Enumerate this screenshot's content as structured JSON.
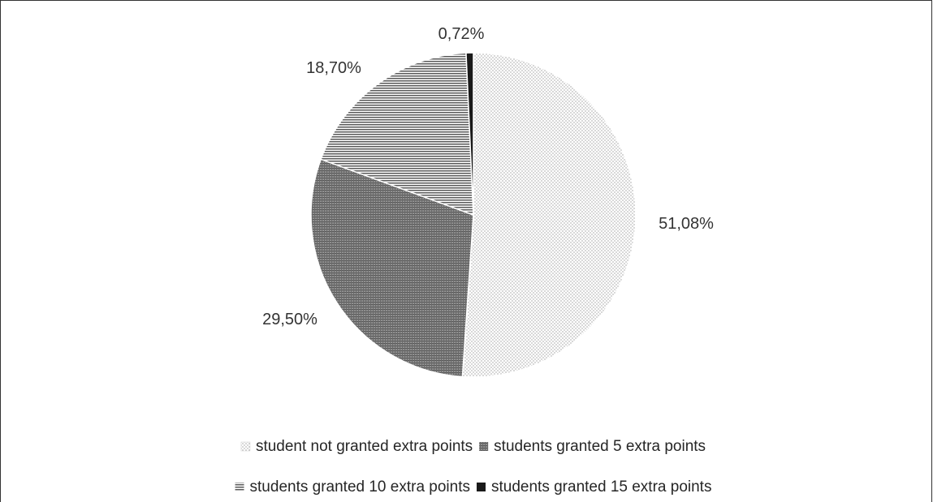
{
  "chart_data": {
    "type": "pie",
    "title": "",
    "slices": [
      {
        "label": "student not granted extra points",
        "value": 51.08,
        "display": "51,08%",
        "pattern": "dots"
      },
      {
        "label": "students granted 5 extra points",
        "value": 29.5,
        "display": "29,50%",
        "pattern": "dense-lines"
      },
      {
        "label": "students granted 10 extra points",
        "value": 18.7,
        "display": "18,70%",
        "pattern": "horizontal-lines"
      },
      {
        "label": "students granted 15 extra points",
        "value": 0.72,
        "display": "0,72%",
        "pattern": "solid"
      }
    ],
    "start_angle": "12 o'clock",
    "direction": "clockwise",
    "legend_position": "bottom",
    "colors": {
      "dots": "#777777",
      "dense_lines": "#555555",
      "horizontal_lines": "#5a5a5a",
      "solid": "#1a1a1a",
      "frame": "#333333"
    }
  }
}
